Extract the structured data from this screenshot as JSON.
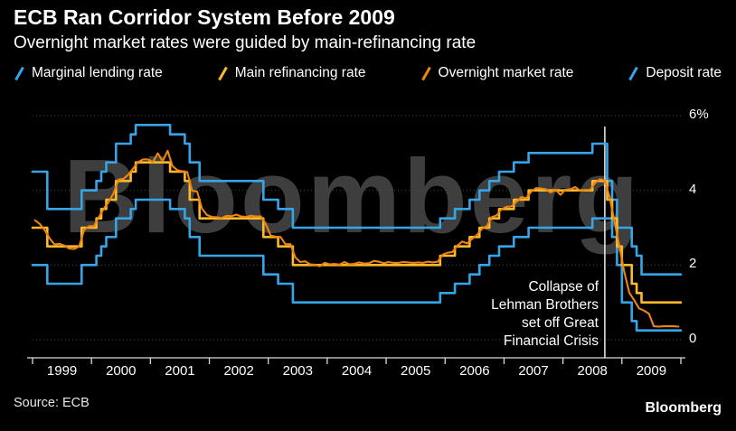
{
  "header": {
    "title": "ECB Ran Corridor System Before 2009",
    "subtitle": "Overnight market rates were guided by main-refinancing rate"
  },
  "legend": {
    "items": [
      {
        "label": "Marginal lending rate",
        "color": "#36a5e8"
      },
      {
        "label": "Main refinancing rate",
        "color": "#fdb92a"
      },
      {
        "label": "Overnight market rate",
        "color": "#ef8511"
      },
      {
        "label": "Deposit rate",
        "color": "#36a5e8"
      }
    ]
  },
  "watermark": "Bloomberg",
  "footer": {
    "source": "Source:  ECB",
    "brand": "Bloomberg"
  },
  "chart_data": {
    "type": "line",
    "title": "ECB Ran Corridor System Before 2009",
    "subtitle": "Overnight market rates were guided by main-refinancing rate",
    "x_start_year": 1999,
    "x_end_year": 2010,
    "x_tick_labels": [
      "1999",
      "2000",
      "2001",
      "2002",
      "2003",
      "2004",
      "2005",
      "2006",
      "2007",
      "2008",
      "2009"
    ],
    "y_ticks": [
      0,
      2,
      4,
      6
    ],
    "y_tick_labels": [
      "0",
      "2",
      "4",
      "6%"
    ],
    "ylim": [
      0,
      6
    ],
    "grid": "horizontal-dotted",
    "legend_position": "top",
    "annotation": {
      "text": "Collapse of\nLehman Brothers\nset off Great\nFinancial Crisis",
      "x_year": 2008.71
    },
    "series": [
      {
        "name": "Marginal lending rate",
        "color": "#36a5e8",
        "width": 2.6,
        "step": true,
        "values": [
          4.5,
          4.5,
          4.5,
          3.5,
          3.5,
          3.5,
          3.5,
          3.5,
          3.5,
          3.5,
          4.0,
          4.0,
          4.0,
          4.25,
          4.5,
          4.75,
          4.75,
          5.25,
          5.25,
          5.25,
          5.5,
          5.75,
          5.75,
          5.75,
          5.75,
          5.75,
          5.75,
          5.75,
          5.5,
          5.5,
          5.5,
          5.25,
          4.75,
          4.75,
          4.25,
          4.25,
          4.25,
          4.25,
          4.25,
          4.25,
          4.25,
          4.25,
          4.25,
          4.25,
          4.25,
          4.25,
          4.25,
          3.75,
          3.75,
          3.75,
          3.5,
          3.5,
          3.5,
          3.0,
          3.0,
          3.0,
          3.0,
          3.0,
          3.0,
          3.0,
          3.0,
          3.0,
          3.0,
          3.0,
          3.0,
          3.0,
          3.0,
          3.0,
          3.0,
          3.0,
          3.0,
          3.0,
          3.0,
          3.0,
          3.0,
          3.0,
          3.0,
          3.0,
          3.0,
          3.0,
          3.0,
          3.0,
          3.0,
          3.25,
          3.25,
          3.25,
          3.5,
          3.5,
          3.5,
          3.75,
          3.75,
          4.0,
          4.0,
          4.25,
          4.25,
          4.5,
          4.5,
          4.5,
          4.75,
          4.75,
          4.75,
          5.0,
          5.0,
          5.0,
          5.0,
          5.0,
          5.0,
          5.0,
          5.0,
          5.0,
          5.0,
          5.0,
          5.0,
          5.0,
          5.25,
          5.25,
          5.25,
          4.25,
          3.75,
          3.0,
          3.0,
          3.0,
          2.5,
          2.25,
          1.75,
          1.75,
          1.75,
          1.75,
          1.75,
          1.75,
          1.75,
          1.75
        ]
      },
      {
        "name": "Deposit rate",
        "color": "#36a5e8",
        "width": 2.6,
        "step": true,
        "values": [
          2.0,
          2.0,
          2.0,
          1.5,
          1.5,
          1.5,
          1.5,
          1.5,
          1.5,
          1.5,
          2.0,
          2.0,
          2.0,
          2.25,
          2.5,
          2.75,
          2.75,
          3.25,
          3.25,
          3.25,
          3.5,
          3.75,
          3.75,
          3.75,
          3.75,
          3.75,
          3.75,
          3.75,
          3.5,
          3.5,
          3.5,
          3.25,
          2.75,
          2.75,
          2.25,
          2.25,
          2.25,
          2.25,
          2.25,
          2.25,
          2.25,
          2.25,
          2.25,
          2.25,
          2.25,
          2.25,
          2.25,
          1.75,
          1.75,
          1.75,
          1.5,
          1.5,
          1.5,
          1.0,
          1.0,
          1.0,
          1.0,
          1.0,
          1.0,
          1.0,
          1.0,
          1.0,
          1.0,
          1.0,
          1.0,
          1.0,
          1.0,
          1.0,
          1.0,
          1.0,
          1.0,
          1.0,
          1.0,
          1.0,
          1.0,
          1.0,
          1.0,
          1.0,
          1.0,
          1.0,
          1.0,
          1.0,
          1.0,
          1.25,
          1.25,
          1.25,
          1.5,
          1.5,
          1.5,
          1.75,
          1.75,
          2.0,
          2.0,
          2.25,
          2.25,
          2.5,
          2.5,
          2.5,
          2.75,
          2.75,
          2.75,
          3.0,
          3.0,
          3.0,
          3.0,
          3.0,
          3.0,
          3.0,
          3.0,
          3.0,
          3.0,
          3.0,
          3.0,
          3.0,
          3.25,
          3.25,
          3.25,
          3.25,
          2.75,
          2.0,
          1.0,
          1.0,
          0.5,
          0.25,
          0.25,
          0.25,
          0.25,
          0.25,
          0.25,
          0.25,
          0.25,
          0.25
        ]
      },
      {
        "name": "Main refinancing rate",
        "color": "#fdb92a",
        "width": 2.6,
        "step": true,
        "values": [
          3.0,
          3.0,
          3.0,
          2.5,
          2.5,
          2.5,
          2.5,
          2.5,
          2.5,
          2.5,
          3.0,
          3.0,
          3.0,
          3.25,
          3.5,
          3.75,
          3.75,
          4.25,
          4.25,
          4.25,
          4.5,
          4.75,
          4.75,
          4.75,
          4.75,
          4.75,
          4.75,
          4.75,
          4.5,
          4.5,
          4.5,
          4.25,
          3.75,
          3.75,
          3.25,
          3.25,
          3.25,
          3.25,
          3.25,
          3.25,
          3.25,
          3.25,
          3.25,
          3.25,
          3.25,
          3.25,
          3.25,
          2.75,
          2.75,
          2.75,
          2.5,
          2.5,
          2.5,
          2.0,
          2.0,
          2.0,
          2.0,
          2.0,
          2.0,
          2.0,
          2.0,
          2.0,
          2.0,
          2.0,
          2.0,
          2.0,
          2.0,
          2.0,
          2.0,
          2.0,
          2.0,
          2.0,
          2.0,
          2.0,
          2.0,
          2.0,
          2.0,
          2.0,
          2.0,
          2.0,
          2.0,
          2.0,
          2.0,
          2.25,
          2.25,
          2.25,
          2.5,
          2.5,
          2.5,
          2.75,
          2.75,
          3.0,
          3.0,
          3.25,
          3.25,
          3.5,
          3.5,
          3.5,
          3.75,
          3.75,
          3.75,
          4.0,
          4.0,
          4.0,
          4.0,
          4.0,
          4.0,
          4.0,
          4.0,
          4.0,
          4.0,
          4.0,
          4.0,
          4.0,
          4.25,
          4.25,
          4.25,
          3.75,
          3.25,
          2.5,
          2.0,
          2.0,
          1.5,
          1.25,
          1.0,
          1.0,
          1.0,
          1.0,
          1.0,
          1.0,
          1.0,
          1.0
        ]
      },
      {
        "name": "Overnight market rate",
        "color": "#ef8511",
        "width": 2.1,
        "step": false,
        "values": [
          3.2,
          3.1,
          2.93,
          2.71,
          2.55,
          2.57,
          2.52,
          2.44,
          2.43,
          2.5,
          2.94,
          3.04,
          3.04,
          3.28,
          3.51,
          3.69,
          3.92,
          4.29,
          4.31,
          4.42,
          4.59,
          4.76,
          4.83,
          4.83,
          4.76,
          4.99,
          4.78,
          5.06,
          4.65,
          4.54,
          4.51,
          4.49,
          3.99,
          3.97,
          3.51,
          3.34,
          3.29,
          3.28,
          3.26,
          3.32,
          3.31,
          3.35,
          3.3,
          3.29,
          3.32,
          3.3,
          3.3,
          3.09,
          2.79,
          2.76,
          2.75,
          2.56,
          2.56,
          2.21,
          2.08,
          2.1,
          2.02,
          2.01,
          1.97,
          2.06,
          2.02,
          2.03,
          2.01,
          2.08,
          2.02,
          2.03,
          2.07,
          2.04,
          2.05,
          2.11,
          2.09,
          2.05,
          2.08,
          2.06,
          2.06,
          2.08,
          2.07,
          2.06,
          2.07,
          2.06,
          2.09,
          2.07,
          2.09,
          2.28,
          2.33,
          2.35,
          2.52,
          2.63,
          2.58,
          2.7,
          2.81,
          2.97,
          3.04,
          3.28,
          3.33,
          3.5,
          3.56,
          3.57,
          3.69,
          3.82,
          3.79,
          3.96,
          4.06,
          4.05,
          4.03,
          3.94,
          4.02,
          3.88,
          4.02,
          4.03,
          4.09,
          3.99,
          4.01,
          4.01,
          4.19,
          4.3,
          4.27,
          3.82,
          3.15,
          2.49,
          1.81,
          1.26,
          1.06,
          0.84,
          0.78,
          0.7,
          0.36,
          0.35,
          0.36,
          0.36,
          0.36,
          0.35
        ]
      }
    ]
  }
}
